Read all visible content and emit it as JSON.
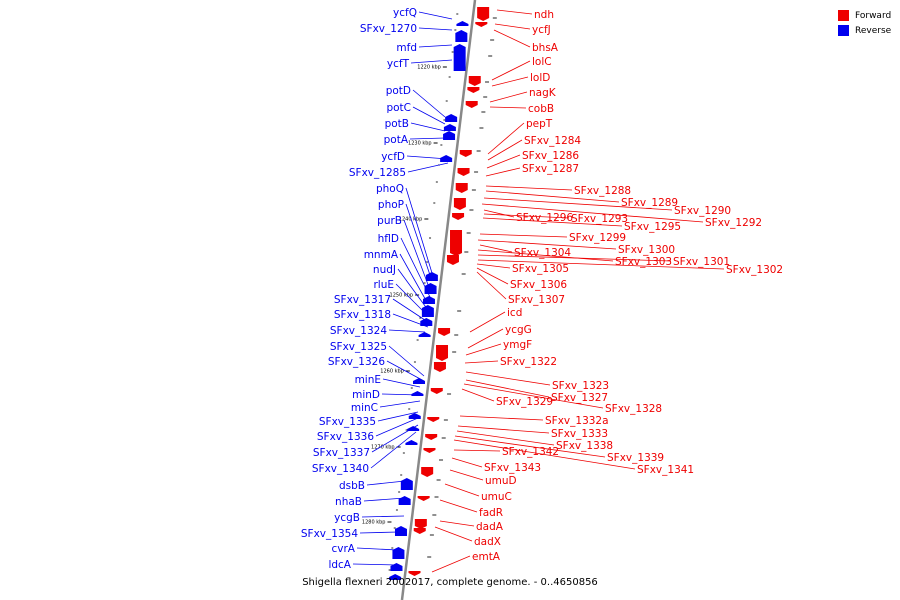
{
  "caption": "Shigella flexneri 2002017, complete genome. - 0..4650856",
  "legend": [
    {
      "label": "Forward",
      "color": "#ee0000"
    },
    {
      "label": "Reverse",
      "color": "#0000ee"
    }
  ],
  "colors": {
    "forward": "#ee0000",
    "reverse": "#0000ee",
    "backbone": "#888888"
  },
  "ticks": [
    "1220 kbp",
    "1230 kbp",
    "1240 kbp",
    "1250 kbp",
    "1260 kbp",
    "1270 kbp",
    "1280 kbp"
  ],
  "reverse_genes": [
    "ycfQ",
    "SFxv_1270",
    "mfd",
    "ycfT",
    "potD",
    "potC",
    "potB",
    "potA",
    "ycfD",
    "SFxv_1285",
    "phoQ",
    "phoP",
    "purB",
    "hflD",
    "mnmA",
    "nudJ",
    "rluE",
    "SFxv_1317",
    "SFxv_1318",
    "SFxv_1324",
    "SFxv_1325",
    "SFxv_1326",
    "minE",
    "minD",
    "minC",
    "SFxv_1335",
    "SFxv_1336",
    "SFxv_1337",
    "SFxv_1340",
    "dsbB",
    "nhaB",
    "ycgB",
    "SFxv_1354",
    "cvrA",
    "ldcA"
  ],
  "forward_genes": [
    "ndh",
    "ycfJ",
    "bhsA",
    "lolC",
    "lolD",
    "nagK",
    "cobB",
    "pepT",
    "SFxv_1284",
    "SFxv_1286",
    "SFxv_1287",
    "SFxv_1288",
    "SFxv_1289",
    "SFxv_1290",
    "SFxv_1296",
    "SFxv_1293",
    "SFxv_1292",
    "SFxv_1295",
    "SFxv_1299",
    "SFxv_1300",
    "SFxv_1304",
    "SFxv_1303",
    "SFxv_1301",
    "SFxv_1302",
    "SFxv_1305",
    "SFxv_1306",
    "SFxv_1307",
    "icd",
    "ycgG",
    "ymgF",
    "SFxv_1322",
    "SFxv_1323",
    "SFxv_1327",
    "SFxv_1329",
    "SFxv_1328",
    "SFxv_1332a",
    "SFxv_1333",
    "SFxv_1338",
    "SFxv_1342",
    "SFxv_1339",
    "SFxv_1343",
    "SFxv_1341",
    "umuD",
    "umuC",
    "fadR",
    "dadA",
    "dadX",
    "emtA"
  ]
}
